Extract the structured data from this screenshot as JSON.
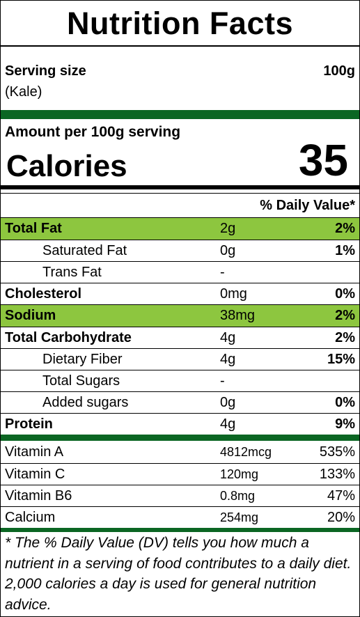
{
  "title": "Nutrition Facts",
  "serving": {
    "label": "Serving size",
    "amount": "100g",
    "food": "(Kale)"
  },
  "amount_per": "Amount per 100g serving",
  "calories": {
    "label": "Calories",
    "value": "35"
  },
  "dv_header": "% Daily Value*",
  "nutrients": [
    {
      "name": "Total Fat",
      "amount": "2g",
      "dv": "2%"
    },
    {
      "name": "Saturated Fat",
      "amount": "0g",
      "dv": "1%"
    },
    {
      "name": "Trans Fat",
      "amount": "-",
      "dv": ""
    },
    {
      "name": "Cholesterol",
      "amount": "0mg",
      "dv": "0%"
    },
    {
      "name": "Sodium",
      "amount": "38mg",
      "dv": "2%"
    },
    {
      "name": "Total Carbohydrate",
      "amount": "4g",
      "dv": "2%"
    },
    {
      "name": "Dietary Fiber",
      "amount": "4g",
      "dv": "15%"
    },
    {
      "name": "Total Sugars",
      "amount": "-",
      "dv": ""
    },
    {
      "name": "Added sugars",
      "amount": "0g",
      "dv": "0%"
    },
    {
      "name": "Protein",
      "amount": "4g",
      "dv": "9%"
    }
  ],
  "vitamins": [
    {
      "name": "Vitamin A",
      "amount": "4812mcg",
      "dv": "535%"
    },
    {
      "name": "Vitamin C",
      "amount": "120mg",
      "dv": "133%"
    },
    {
      "name": "Vitamin B6",
      "amount": "0.8mg",
      "dv": "47%"
    },
    {
      "name": "Calcium",
      "amount": "254mg",
      "dv": "20%"
    }
  ],
  "footnote": "* The % Daily Value (DV) tells you how much a nutrient in a serving of food contributes to a daily diet. 2,000 calories a day is used for general nutrition advice.",
  "colors": {
    "dark_green": "#0b6623",
    "highlight_green": "#8dc63f"
  }
}
